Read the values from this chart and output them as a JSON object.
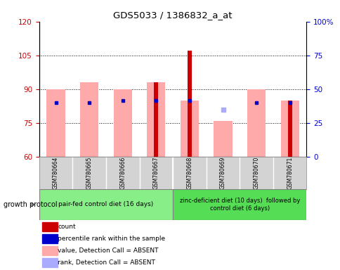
{
  "title": "GDS5033 / 1386832_a_at",
  "samples": [
    "GSM780664",
    "GSM780665",
    "GSM780666",
    "GSM780667",
    "GSM780668",
    "GSM780669",
    "GSM780670",
    "GSM780671"
  ],
  "count_values": [
    60,
    60,
    60,
    93,
    107,
    60,
    60,
    85
  ],
  "count_color": "#cc0000",
  "pink_bar_top": [
    90,
    93,
    90,
    93,
    85,
    76,
    90,
    85
  ],
  "pink_bar_bottom": [
    60,
    60,
    60,
    60,
    60,
    60,
    60,
    60
  ],
  "pink_color": "#ffaaaa",
  "blue_square_values": [
    84,
    84,
    85,
    85,
    85,
    null,
    84,
    84
  ],
  "blue_square_color": "#0000cc",
  "light_blue_square_values": [
    null,
    null,
    null,
    null,
    null,
    81,
    null,
    null
  ],
  "light_blue_square_color": "#aaaaff",
  "ylim_left": [
    60,
    120
  ],
  "yticks_left": [
    60,
    75,
    90,
    105,
    120
  ],
  "ylim_right": [
    0,
    100
  ],
  "yticks_right": [
    0,
    25,
    50,
    75,
    100
  ],
  "ylabel_left_color": "#cc0000",
  "ylabel_right_color": "#0000cc",
  "group1_label": "pair-fed control diet (16 days)",
  "group2_label": "zinc-deficient diet (10 days)  followed by\ncontrol diet (6 days)",
  "group1_color": "#88ee88",
  "group2_color": "#55dd55",
  "growth_protocol_label": "growth protocol",
  "legend_items": [
    {
      "color": "#cc0000",
      "label": "count"
    },
    {
      "color": "#0000cc",
      "label": "percentile rank within the sample"
    },
    {
      "color": "#ffaaaa",
      "label": "value, Detection Call = ABSENT"
    },
    {
      "color": "#aaaaff",
      "label": "rank, Detection Call = ABSENT"
    }
  ],
  "pink_bar_width": 0.55,
  "red_bar_width": 0.12,
  "sample_box_color": "#d3d3d3",
  "grid_yticks": [
    75,
    90,
    105
  ]
}
